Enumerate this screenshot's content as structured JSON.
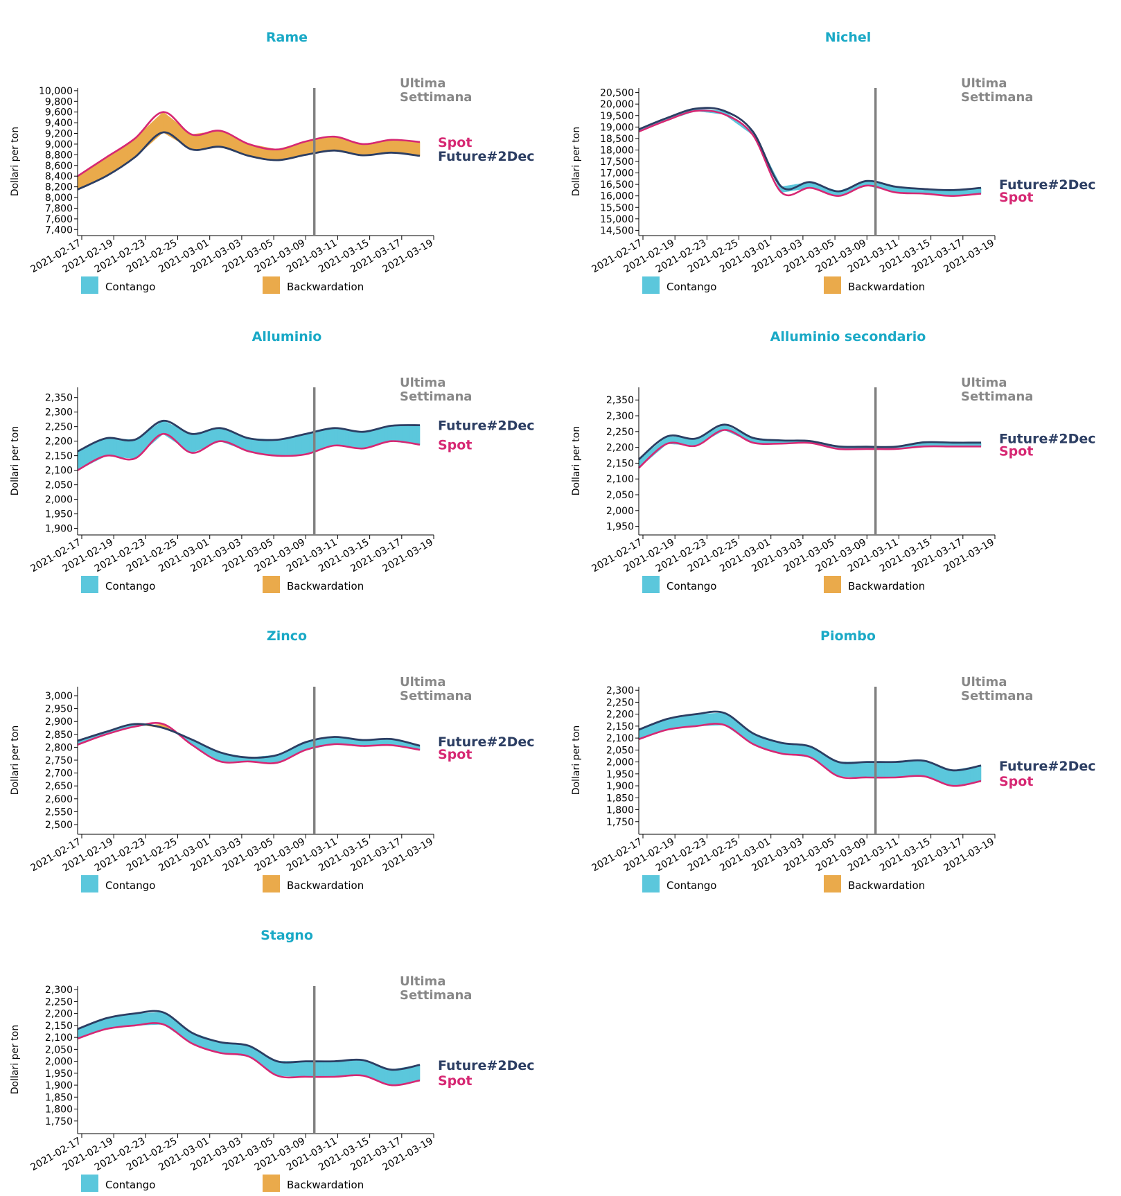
{
  "colors": {
    "title": "#1aa9c6",
    "future": "#2c3e63",
    "spot": "#d62873",
    "contango": "#5bc7dc",
    "backwardation": "#eaaa4b",
    "week_line": "#808080"
  },
  "common": {
    "ylabel": "Dollari per ton",
    "week_label_1": "Ultima",
    "week_label_2": "Settimana",
    "legend_contango": "Contango",
    "legend_backwardation": "Backwardation",
    "spot_label": "Spot",
    "future_label": "Future#2Dec",
    "x_tick_labels": [
      "2021-02-17",
      "2021-02-19",
      "2021-02-23",
      "2021-02-25",
      "2021-03-01",
      "2021-03-03",
      "2021-03-05",
      "2021-03-09",
      "2021-03-11",
      "2021-03-15",
      "2021-03-17",
      "2021-03-19"
    ],
    "last_week_marker_index": 8.3
  },
  "chart_data": [
    {
      "type": "area",
      "title": "Rame",
      "ylim": [
        7300,
        10050
      ],
      "yticks": [
        7400,
        7600,
        7800,
        8000,
        8200,
        8400,
        8600,
        8800,
        9000,
        9200,
        9400,
        9600,
        9800,
        10000
      ],
      "future": [
        8150,
        8400,
        8750,
        9220,
        8900,
        8950,
        8780,
        8700,
        8800,
        8880,
        8790,
        8840,
        8780
      ],
      "spot": [
        8400,
        8750,
        9100,
        9600,
        9180,
        9250,
        9000,
        8900,
        9050,
        9140,
        9000,
        9080,
        9040
      ],
      "label_order": "spot_above"
    },
    {
      "type": "area",
      "title": "Nichel",
      "ylim": [
        14300,
        20700
      ],
      "yticks": [
        14500,
        15000,
        15500,
        16000,
        16500,
        17000,
        17500,
        18000,
        18500,
        19000,
        19500,
        20000,
        20500
      ],
      "future": [
        18900,
        19400,
        19800,
        19700,
        18800,
        16400,
        16600,
        16200,
        16650,
        16400,
        16300,
        16250,
        16350
      ],
      "spot": [
        18800,
        19300,
        19700,
        19550,
        18650,
        16150,
        16350,
        16000,
        16450,
        16150,
        16100,
        16000,
        16100
      ],
      "label_order": "future_above"
    },
    {
      "type": "area",
      "title": "Alluminio",
      "ylim": [
        1880,
        2385
      ],
      "yticks": [
        1900,
        1950,
        2000,
        2050,
        2100,
        2150,
        2200,
        2250,
        2300,
        2350
      ],
      "future": [
        2165,
        2210,
        2205,
        2270,
        2225,
        2245,
        2210,
        2205,
        2225,
        2245,
        2232,
        2253,
        2255
      ],
      "spot": [
        2100,
        2150,
        2140,
        2225,
        2160,
        2200,
        2165,
        2150,
        2155,
        2185,
        2175,
        2200,
        2188
      ],
      "label_order": "future_above"
    },
    {
      "type": "area",
      "title": "Alluminio secondario",
      "ylim": [
        1925,
        2390
      ],
      "yticks": [
        1950,
        2000,
        2050,
        2100,
        2150,
        2200,
        2250,
        2300,
        2350
      ],
      "future": [
        2162,
        2235,
        2228,
        2272,
        2230,
        2222,
        2220,
        2203,
        2202,
        2202,
        2216,
        2215,
        2215
      ],
      "spot": [
        2135,
        2212,
        2205,
        2255,
        2215,
        2212,
        2214,
        2195,
        2195,
        2195,
        2203,
        2203,
        2203
      ],
      "label_order": "future_above"
    },
    {
      "type": "area",
      "title": "Zinco",
      "ylim": [
        2465,
        3035
      ],
      "yticks": [
        2500,
        2550,
        2600,
        2650,
        2700,
        2750,
        2800,
        2850,
        2900,
        2950,
        3000
      ],
      "future": [
        2825,
        2860,
        2890,
        2875,
        2830,
        2780,
        2760,
        2770,
        2820,
        2840,
        2828,
        2832,
        2806
      ],
      "spot": [
        2810,
        2850,
        2880,
        2890,
        2810,
        2745,
        2745,
        2740,
        2790,
        2812,
        2805,
        2808,
        2790
      ],
      "label_order": "future_above"
    },
    {
      "type": "area",
      "title": "Piombo",
      "ylim": [
        1700,
        2315
      ],
      "yticks": [
        1750,
        1800,
        1850,
        1900,
        1950,
        2000,
        2050,
        2100,
        2150,
        2200,
        2250,
        2300
      ],
      "future": [
        2135,
        2180,
        2200,
        2205,
        2120,
        2080,
        2065,
        2000,
        2000,
        2000,
        2005,
        1965,
        1985
      ],
      "spot": [
        2095,
        2135,
        2150,
        2155,
        2075,
        2035,
        2020,
        1940,
        1935,
        1935,
        1940,
        1900,
        1920
      ],
      "label_order": "future_above"
    },
    {
      "type": "area",
      "title": "Stagno",
      "ylim": [
        1700,
        2315
      ],
      "yticks": [
        1750,
        1800,
        1850,
        1900,
        1950,
        2000,
        2050,
        2100,
        2150,
        2200,
        2250,
        2300
      ],
      "future": [
        2135,
        2180,
        2200,
        2205,
        2120,
        2080,
        2065,
        2000,
        2000,
        2000,
        2005,
        1965,
        1985
      ],
      "spot": [
        2095,
        2135,
        2150,
        2155,
        2075,
        2035,
        2020,
        1940,
        1935,
        1935,
        1940,
        1900,
        1920
      ],
      "label_order": "future_above"
    }
  ]
}
